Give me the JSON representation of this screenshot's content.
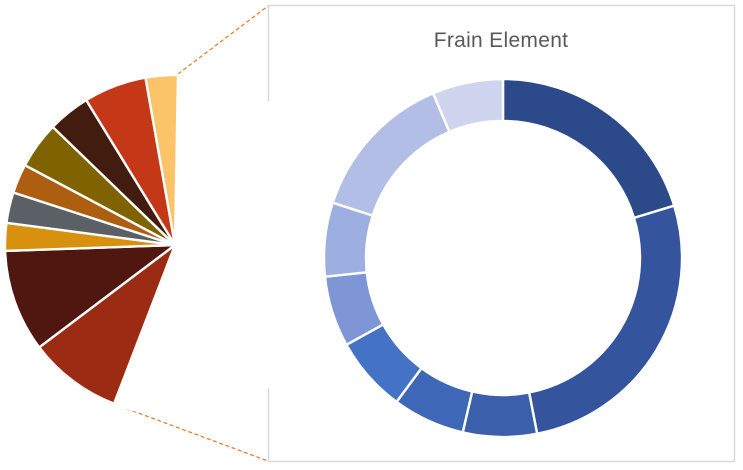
{
  "panel": {
    "title": "Frain Element",
    "title_color": "#595959",
    "border_color": "#D9D9D9",
    "background": "#FFFFFF"
  },
  "leader_lines": {
    "color": "#ED7D31",
    "style": "dashed"
  },
  "chart_data": [
    {
      "type": "pie",
      "name": "primary-pie",
      "title": "",
      "legend": "none",
      "data_labels": "none",
      "note": "Main pie of a pie-of-pie chart; the white gap on the right side is the expanded group detailed in the secondary doughnut chart",
      "start_angle_deg": 1,
      "slices": [
        {
          "label": "expanded-other-group",
          "span_deg": 200.0,
          "pct": 55.6,
          "color": "#FFFFFF",
          "hidden": true
        },
        {
          "label": "brick-red",
          "span_deg": 32.0,
          "pct": 8.9,
          "color": "#9C2B13"
        },
        {
          "label": "dark-maroon-large",
          "span_deg": 35.0,
          "pct": 9.7,
          "color": "#4F1710"
        },
        {
          "label": "golden-amber",
          "span_deg": 9.5,
          "pct": 2.6,
          "color": "#D8910F"
        },
        {
          "label": "slate-gray",
          "span_deg": 10.5,
          "pct": 2.9,
          "color": "#5A6066"
        },
        {
          "label": "rust-brown",
          "span_deg": 10.0,
          "pct": 2.8,
          "color": "#AE5E11"
        },
        {
          "label": "dark-olive",
          "span_deg": 16.0,
          "pct": 4.4,
          "color": "#7E6300"
        },
        {
          "label": "dark-maroon-small",
          "span_deg": 14.5,
          "pct": 4.0,
          "color": "#431C10"
        },
        {
          "label": "vermillion-red",
          "span_deg": 21.5,
          "pct": 6.0,
          "color": "#C53817"
        },
        {
          "label": "light-amber",
          "span_deg": 11.0,
          "pct": 3.1,
          "color": "#FBC468"
        }
      ]
    },
    {
      "type": "donut",
      "name": "frain-element-donut",
      "title": "Frain Element",
      "legend": "none",
      "data_labels": "none",
      "hole_ratio": 0.765,
      "start_angle_deg": 0,
      "slices": [
        {
          "label": "segment-1",
          "span_deg": 73.0,
          "pct": 20.3,
          "color": "#2C4A8A"
        },
        {
          "label": "segment-2",
          "span_deg": 96.0,
          "pct": 26.7,
          "color": "#34559D"
        },
        {
          "label": "segment-3",
          "span_deg": 24.0,
          "pct": 6.7,
          "color": "#3B5FAB"
        },
        {
          "label": "segment-4",
          "span_deg": 23.5,
          "pct": 6.5,
          "color": "#3F67B7"
        },
        {
          "label": "segment-5",
          "span_deg": 24.5,
          "pct": 6.8,
          "color": "#4472C4"
        },
        {
          "label": "segment-6",
          "span_deg": 23.0,
          "pct": 6.4,
          "color": "#7E95D6"
        },
        {
          "label": "segment-7",
          "span_deg": 24.0,
          "pct": 6.7,
          "color": "#9DAEE0"
        },
        {
          "label": "segment-8",
          "span_deg": 49.0,
          "pct": 13.6,
          "color": "#B3BEE6"
        },
        {
          "label": "segment-9",
          "span_deg": 23.0,
          "pct": 6.4,
          "color": "#CFD5EE"
        }
      ]
    }
  ]
}
